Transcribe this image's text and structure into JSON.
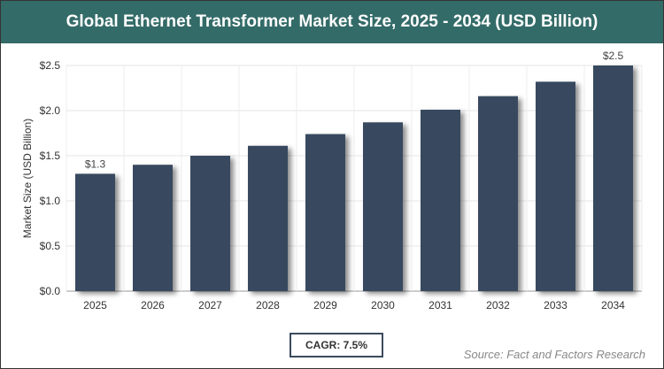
{
  "chart_data": {
    "type": "bar",
    "title": "Global Ethernet Transformer Market Size, 2025 - 2034 (USD Billion)",
    "categories": [
      "2025",
      "2026",
      "2027",
      "2028",
      "2029",
      "2030",
      "2031",
      "2032",
      "2033",
      "2034"
    ],
    "values": [
      1.3,
      1.4,
      1.5,
      1.61,
      1.74,
      1.87,
      2.01,
      2.16,
      2.32,
      2.5
    ],
    "data_labels": {
      "2025": "$1.3",
      "2034": "$2.5"
    },
    "xlabel": "",
    "ylabel": "Market Size (USD Billion)",
    "ylim": [
      0,
      2.5
    ],
    "yticks": [
      "$0.0",
      "$0.5",
      "$1.0",
      "$1.5",
      "$2.0",
      "$2.5"
    ],
    "grid": true,
    "bar_color": "#37495f",
    "header_color": "#336b68"
  },
  "cagr": "CAGR: 7.5%",
  "source": "Source: Fact and Factors Research"
}
